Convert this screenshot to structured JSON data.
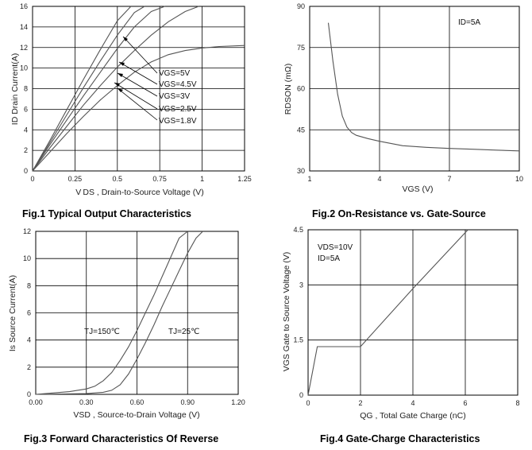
{
  "chart_data": [
    {
      "type": "line",
      "title": "Fig.1 Typical Output Characteristics",
      "xlabel": "V DS , Drain-to-Source Voltage (V)",
      "ylabel": "ID Drain Current(A)",
      "xlim": [
        0,
        1.25
      ],
      "ylim": [
        0,
        16
      ],
      "xticks": [
        "0",
        "0.25",
        "0.5",
        "0.75",
        "1",
        "1.25"
      ],
      "yticks": [
        "0",
        "2",
        "4",
        "6",
        "8",
        "10",
        "12",
        "14",
        "16"
      ],
      "grid": true,
      "series": [
        {
          "name": "VGS=5V",
          "x": [
            0,
            0.1,
            0.2,
            0.3,
            0.4,
            0.5,
            0.58
          ],
          "y": [
            0,
            2.9,
            5.9,
            8.9,
            11.8,
            14.6,
            16
          ]
        },
        {
          "name": "VGS=4.5V",
          "x": [
            0,
            0.1,
            0.2,
            0.3,
            0.4,
            0.5,
            0.6,
            0.66
          ],
          "y": [
            0,
            2.7,
            5.4,
            8.1,
            10.7,
            13.2,
            15.4,
            16
          ]
        },
        {
          "name": "VGS=3V",
          "x": [
            0,
            0.1,
            0.2,
            0.3,
            0.4,
            0.5,
            0.6,
            0.7,
            0.78
          ],
          "y": [
            0,
            2.5,
            4.9,
            7.3,
            9.6,
            11.9,
            14.0,
            15.5,
            16
          ]
        },
        {
          "name": "VGS=2.5V",
          "x": [
            0,
            0.1,
            0.2,
            0.3,
            0.4,
            0.5,
            0.6,
            0.7,
            0.8,
            0.9,
            0.98
          ],
          "y": [
            0,
            2.2,
            4.3,
            6.4,
            8.3,
            10.1,
            11.7,
            13.2,
            14.5,
            15.5,
            16
          ]
        },
        {
          "name": "VGS=1.8V",
          "x": [
            0,
            0.1,
            0.2,
            0.3,
            0.4,
            0.5,
            0.6,
            0.7,
            0.8,
            0.9,
            1.0,
            1.1,
            1.25
          ],
          "y": [
            0,
            1.8,
            3.6,
            5.3,
            6.9,
            8.3,
            9.6,
            10.6,
            11.3,
            11.7,
            11.95,
            12.1,
            12.2
          ]
        }
      ],
      "legend_labels": [
        "VGS=5V",
        "VGS=4.5V",
        "VGS=3V",
        "VGS=2.5V",
        "VGS=1.8V"
      ]
    },
    {
      "type": "line",
      "title": "Fig.2 On-Resistance vs. Gate-Source",
      "xlabel": "VGS (V)",
      "ylabel": "RDSON (mΩ)",
      "xlim": [
        1,
        10
      ],
      "ylim": [
        30,
        90
      ],
      "xticks": [
        "1",
        "4",
        "7",
        "10"
      ],
      "yticks": [
        "30",
        "45",
        "60",
        "75",
        "90"
      ],
      "grid": true,
      "annotation": "ID=5A",
      "series": [
        {
          "name": "",
          "x": [
            1.8,
            2.0,
            2.2,
            2.4,
            2.6,
            2.8,
            3.0,
            3.5,
            4.0,
            5.0,
            6.0,
            7.0,
            8.0,
            9.0,
            10.0
          ],
          "y": [
            84,
            70,
            58,
            50,
            46,
            44,
            43,
            41.8,
            40.8,
            39.2,
            38.6,
            38.2,
            37.9,
            37.6,
            37.3
          ]
        }
      ]
    },
    {
      "type": "line",
      "title": "Fig.3 Forward Characteristics Of Reverse",
      "xlabel": "VSD , Source-to-Drain Voltage (V)",
      "ylabel": "Is Source Current(A)",
      "xlim": [
        0,
        1.2
      ],
      "ylim": [
        0,
        12
      ],
      "xticks": [
        "0.00",
        "0.30",
        "0.60",
        "0.90",
        "1.20"
      ],
      "yticks": [
        "0",
        "2",
        "4",
        "6",
        "8",
        "10",
        "12"
      ],
      "grid": true,
      "series": [
        {
          "name": "TJ=150℃",
          "x": [
            0,
            0.1,
            0.2,
            0.3,
            0.35,
            0.4,
            0.45,
            0.5,
            0.55,
            0.6,
            0.65,
            0.7,
            0.75,
            0.8,
            0.85,
            0.9
          ],
          "y": [
            0,
            0.1,
            0.2,
            0.4,
            0.6,
            1.0,
            1.6,
            2.5,
            3.5,
            4.7,
            6.0,
            7.3,
            8.7,
            10.1,
            11.5,
            12
          ]
        },
        {
          "name": "TJ=25℃",
          "x": [
            0,
            0.3,
            0.4,
            0.45,
            0.5,
            0.55,
            0.6,
            0.65,
            0.7,
            0.75,
            0.8,
            0.85,
            0.9,
            0.95,
            0.99
          ],
          "y": [
            0,
            0.05,
            0.15,
            0.3,
            0.7,
            1.5,
            2.6,
            3.8,
            5.1,
            6.5,
            7.8,
            9.1,
            10.4,
            11.5,
            12
          ]
        }
      ]
    },
    {
      "type": "line",
      "title": "Fig.4 Gate-Charge Characteristics",
      "xlabel": "QG , Total Gate Charge (nC)",
      "ylabel": "VGS Gate to Source Voltage (V)",
      "xlim": [
        0,
        8
      ],
      "ylim": [
        0,
        4.5
      ],
      "xticks": [
        "0",
        "2",
        "4",
        "6",
        "8"
      ],
      "yticks": [
        "0",
        "1.5",
        "3",
        "4.5"
      ],
      "grid": true,
      "annotation_lines": [
        "VDS=10V",
        "ID=5A"
      ],
      "series": [
        {
          "name": "",
          "x": [
            0,
            0.35,
            2.0,
            4.0,
            6.1
          ],
          "y": [
            0,
            1.32,
            1.32,
            2.9,
            4.5
          ]
        }
      ]
    }
  ]
}
